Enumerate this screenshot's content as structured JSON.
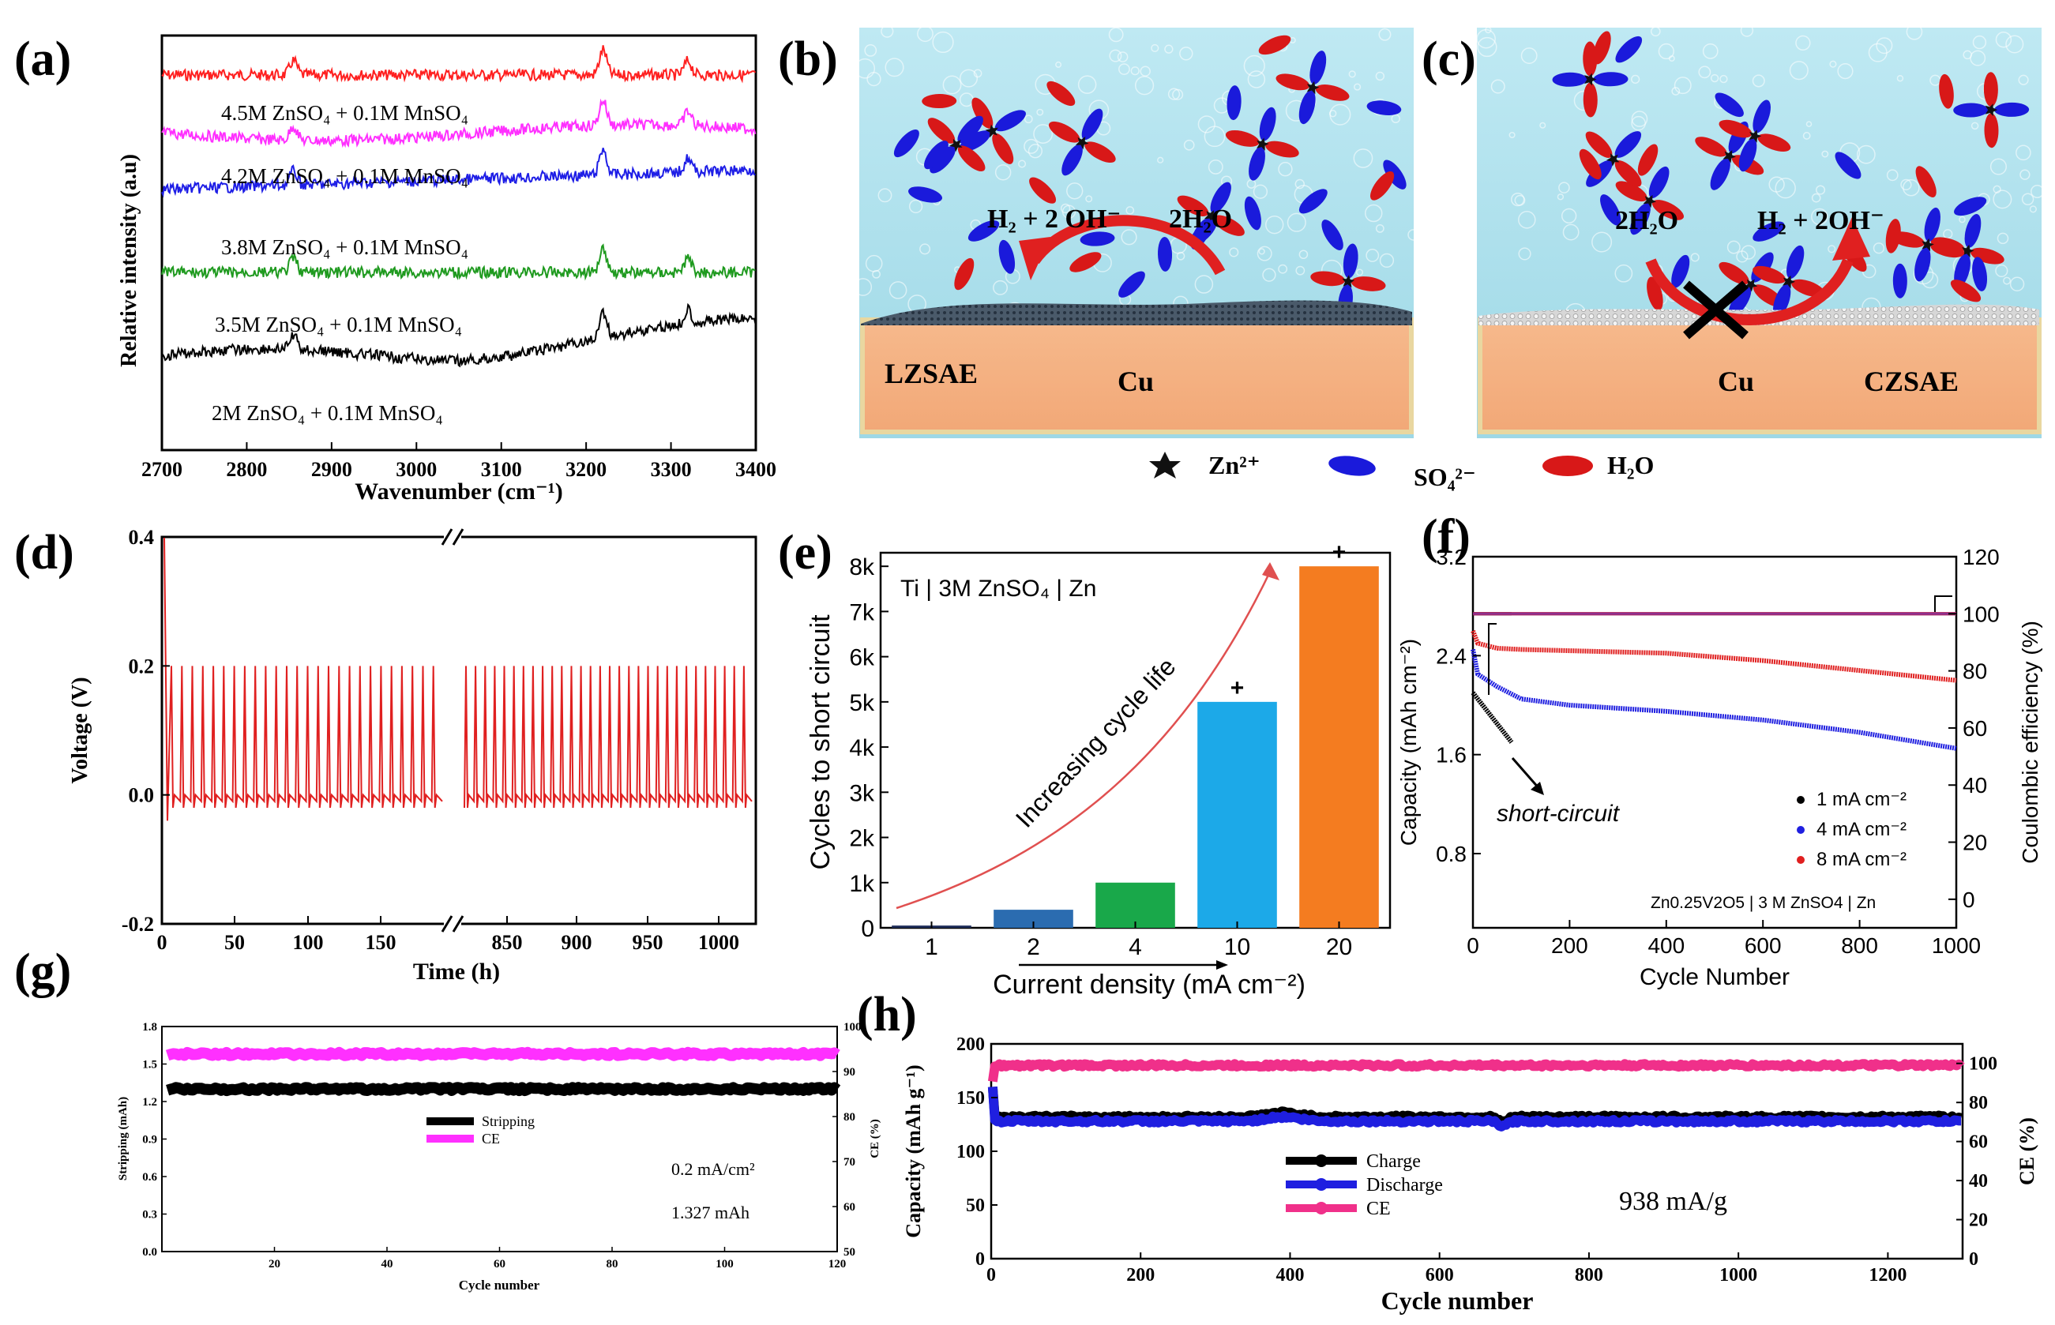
{
  "figure": {
    "panel_labels": [
      "(a)",
      "(b)",
      "(c)",
      "(d)",
      "(e)",
      "(f)",
      "(g)",
      "(h)"
    ]
  },
  "chart_data": [
    {
      "id": "a",
      "type": "line",
      "xlabel": "Wavenumber (cm⁻¹)",
      "ylabel": "Relative intensity (a.u)",
      "xlim": [
        2700,
        3400
      ],
      "xticks": [
        2700,
        2800,
        2900,
        3000,
        3100,
        3200,
        3300,
        3400
      ],
      "series": [
        {
          "name": "4.5M ZnSO₄ + 0.1M MnSO₄",
          "color": "#ff2020"
        },
        {
          "name": "4.2M ZnSO₄ + 0.1M MnSO₄",
          "color": "#ff30ff"
        },
        {
          "name": "3.8M ZnSO₄ + 0.1M MnSO₄",
          "color": "#1e1ee6"
        },
        {
          "name": "3.5M ZnSO₄ + 0.1M MnSO₄",
          "color": "#1f9a1f"
        },
        {
          "name": "2M ZnSO₄ + 0.1M MnSO₄",
          "color": "#000000"
        }
      ],
      "peaks": [
        2855,
        3220,
        3320
      ]
    },
    {
      "id": "b",
      "type": "diagram",
      "reaction_left": "H₂ + 2 OH⁻",
      "reaction_right": "2H₂O",
      "layer_label": "LZSAE",
      "substrate_label": "Cu"
    },
    {
      "id": "c",
      "type": "diagram",
      "reaction_left": "2H₂O",
      "reaction_right": "H₂ + 2OH⁻",
      "layer_label": "CZSAE",
      "substrate_label": "Cu"
    },
    {
      "id": "legend_bc",
      "type": "legend",
      "entries": [
        {
          "label": "Zn²⁺",
          "color": "#111111"
        },
        {
          "label": "SO₄²⁻",
          "color": "#1a1adb"
        },
        {
          "label": "H₂O",
          "color": "#d81818"
        }
      ]
    },
    {
      "id": "d",
      "type": "line",
      "xlabel": "Time (h)",
      "ylabel": "Voltage (V)",
      "ylim": [
        -0.2,
        0.4
      ],
      "yticks": [
        "0.4",
        "0.2",
        "0.0",
        "-0.2"
      ],
      "xticks_left": [
        "0",
        "50",
        "100",
        "150"
      ],
      "xticks_right": [
        "850",
        "900",
        "950",
        "1000"
      ],
      "color": "#e02020",
      "spike_voltage": 0.2,
      "baseline_voltage": 0.0
    },
    {
      "id": "e",
      "type": "bar",
      "title": "Ti | 3M ZnSO₄ | Zn",
      "categories": [
        "1",
        "2",
        "4",
        "10",
        "20"
      ],
      "values": [
        50,
        400,
        1000,
        5000,
        8000
      ],
      "colors": [
        "#1f2e5a",
        "#2b6cb0",
        "#19a84a",
        "#1ca9e8",
        "#f47c20"
      ],
      "plus_marks": [
        "",
        "",
        "",
        "+",
        "+"
      ],
      "xlabel": "Current density (mA cm⁻²)",
      "ylabel": "Cycles to short circuit",
      "ylim": [
        0,
        8300
      ],
      "yticks": [
        "0",
        "1k",
        "2k",
        "3k",
        "4k",
        "5k",
        "6k",
        "7k",
        "8k"
      ],
      "annotation": "Increasing cycle life"
    },
    {
      "id": "f",
      "type": "line",
      "xlabel": "Cycle Number",
      "ylabel": "Capacity (mAh cm⁻²)",
      "y2label": "Coulombic efficiency (%)",
      "xlim": [
        0,
        1000
      ],
      "ylim": [
        0.2,
        3.2
      ],
      "y2lim": [
        -10,
        120
      ],
      "xticks": [
        "0",
        "200",
        "400",
        "600",
        "800",
        "1000"
      ],
      "yticks": [
        "0.8",
        "1.6",
        "2.4",
        "3.2"
      ],
      "y2ticks": [
        "0",
        "20",
        "40",
        "60",
        "80",
        "100",
        "120"
      ],
      "annotation": "short-circuit",
      "system_label": "Zn0.25V2O5 | 3 M ZnSO4 | Zn",
      "series": [
        {
          "name": "1 mA cm⁻²",
          "color": "#000000",
          "x": [
            0,
            20,
            40,
            60,
            80
          ],
          "y": [
            2.1,
            2.0,
            1.9,
            1.8,
            1.7
          ],
          "ce_end": 80
        },
        {
          "name": "4 mA cm⁻²",
          "color": "#1f1fe0",
          "x": [
            0,
            10,
            50,
            100,
            200,
            400,
            600,
            800,
            1000
          ],
          "y": [
            2.45,
            2.25,
            2.15,
            2.05,
            2.0,
            1.95,
            1.88,
            1.78,
            1.65
          ],
          "ce_end": 1000
        },
        {
          "name": "8 mA cm⁻²",
          "color": "#e01f1f",
          "x": [
            0,
            10,
            50,
            100,
            200,
            400,
            600,
            800,
            1000
          ],
          "y": [
            2.6,
            2.5,
            2.46,
            2.45,
            2.44,
            2.42,
            2.36,
            2.28,
            2.2
          ],
          "ce_end": 1000
        }
      ]
    },
    {
      "id": "g",
      "type": "scatter",
      "xlabel": "Cycle number",
      "ylabel": "Stripping (mAh)",
      "y2label": "CE (%)",
      "xlim": [
        0,
        120
      ],
      "ylim": [
        0,
        1.8
      ],
      "y2lim": [
        50,
        100
      ],
      "xticks": [
        "20",
        "40",
        "60",
        "80",
        "100",
        "120"
      ],
      "yticks": [
        "0.0",
        "0.3",
        "0.6",
        "0.9",
        "1.2",
        "1.5",
        "1.8"
      ],
      "y2ticks": [
        "50",
        "60",
        "70",
        "80",
        "90",
        "100"
      ],
      "series": [
        {
          "name": "Stripping",
          "color": "#000000",
          "value": 1.3
        },
        {
          "name": "CE",
          "color": "#ff30ff",
          "value": 1.58
        }
      ],
      "notes": [
        "0.2 mA/cm²",
        "1.327 mAh"
      ]
    },
    {
      "id": "h",
      "type": "scatter",
      "xlabel": "Cycle number",
      "ylabel": "Capacity (mAh g⁻¹)",
      "y2label": "CE (%)",
      "xlim": [
        0,
        1300
      ],
      "ylim": [
        0,
        200
      ],
      "y2lim": [
        0,
        110
      ],
      "xticks": [
        "0",
        "200",
        "400",
        "600",
        "800",
        "1000",
        "1200"
      ],
      "yticks": [
        "0",
        "50",
        "100",
        "150",
        "200"
      ],
      "y2ticks": [
        "0",
        "20",
        "40",
        "60",
        "80",
        "100"
      ],
      "series": [
        {
          "name": "Charge",
          "color": "#000000",
          "value": 132
        },
        {
          "name": "Discharge",
          "color": "#1f1fe0",
          "value": 128
        },
        {
          "name": "CE",
          "color": "#f0308a",
          "value": 180
        }
      ],
      "note": "938 mA/g"
    }
  ]
}
